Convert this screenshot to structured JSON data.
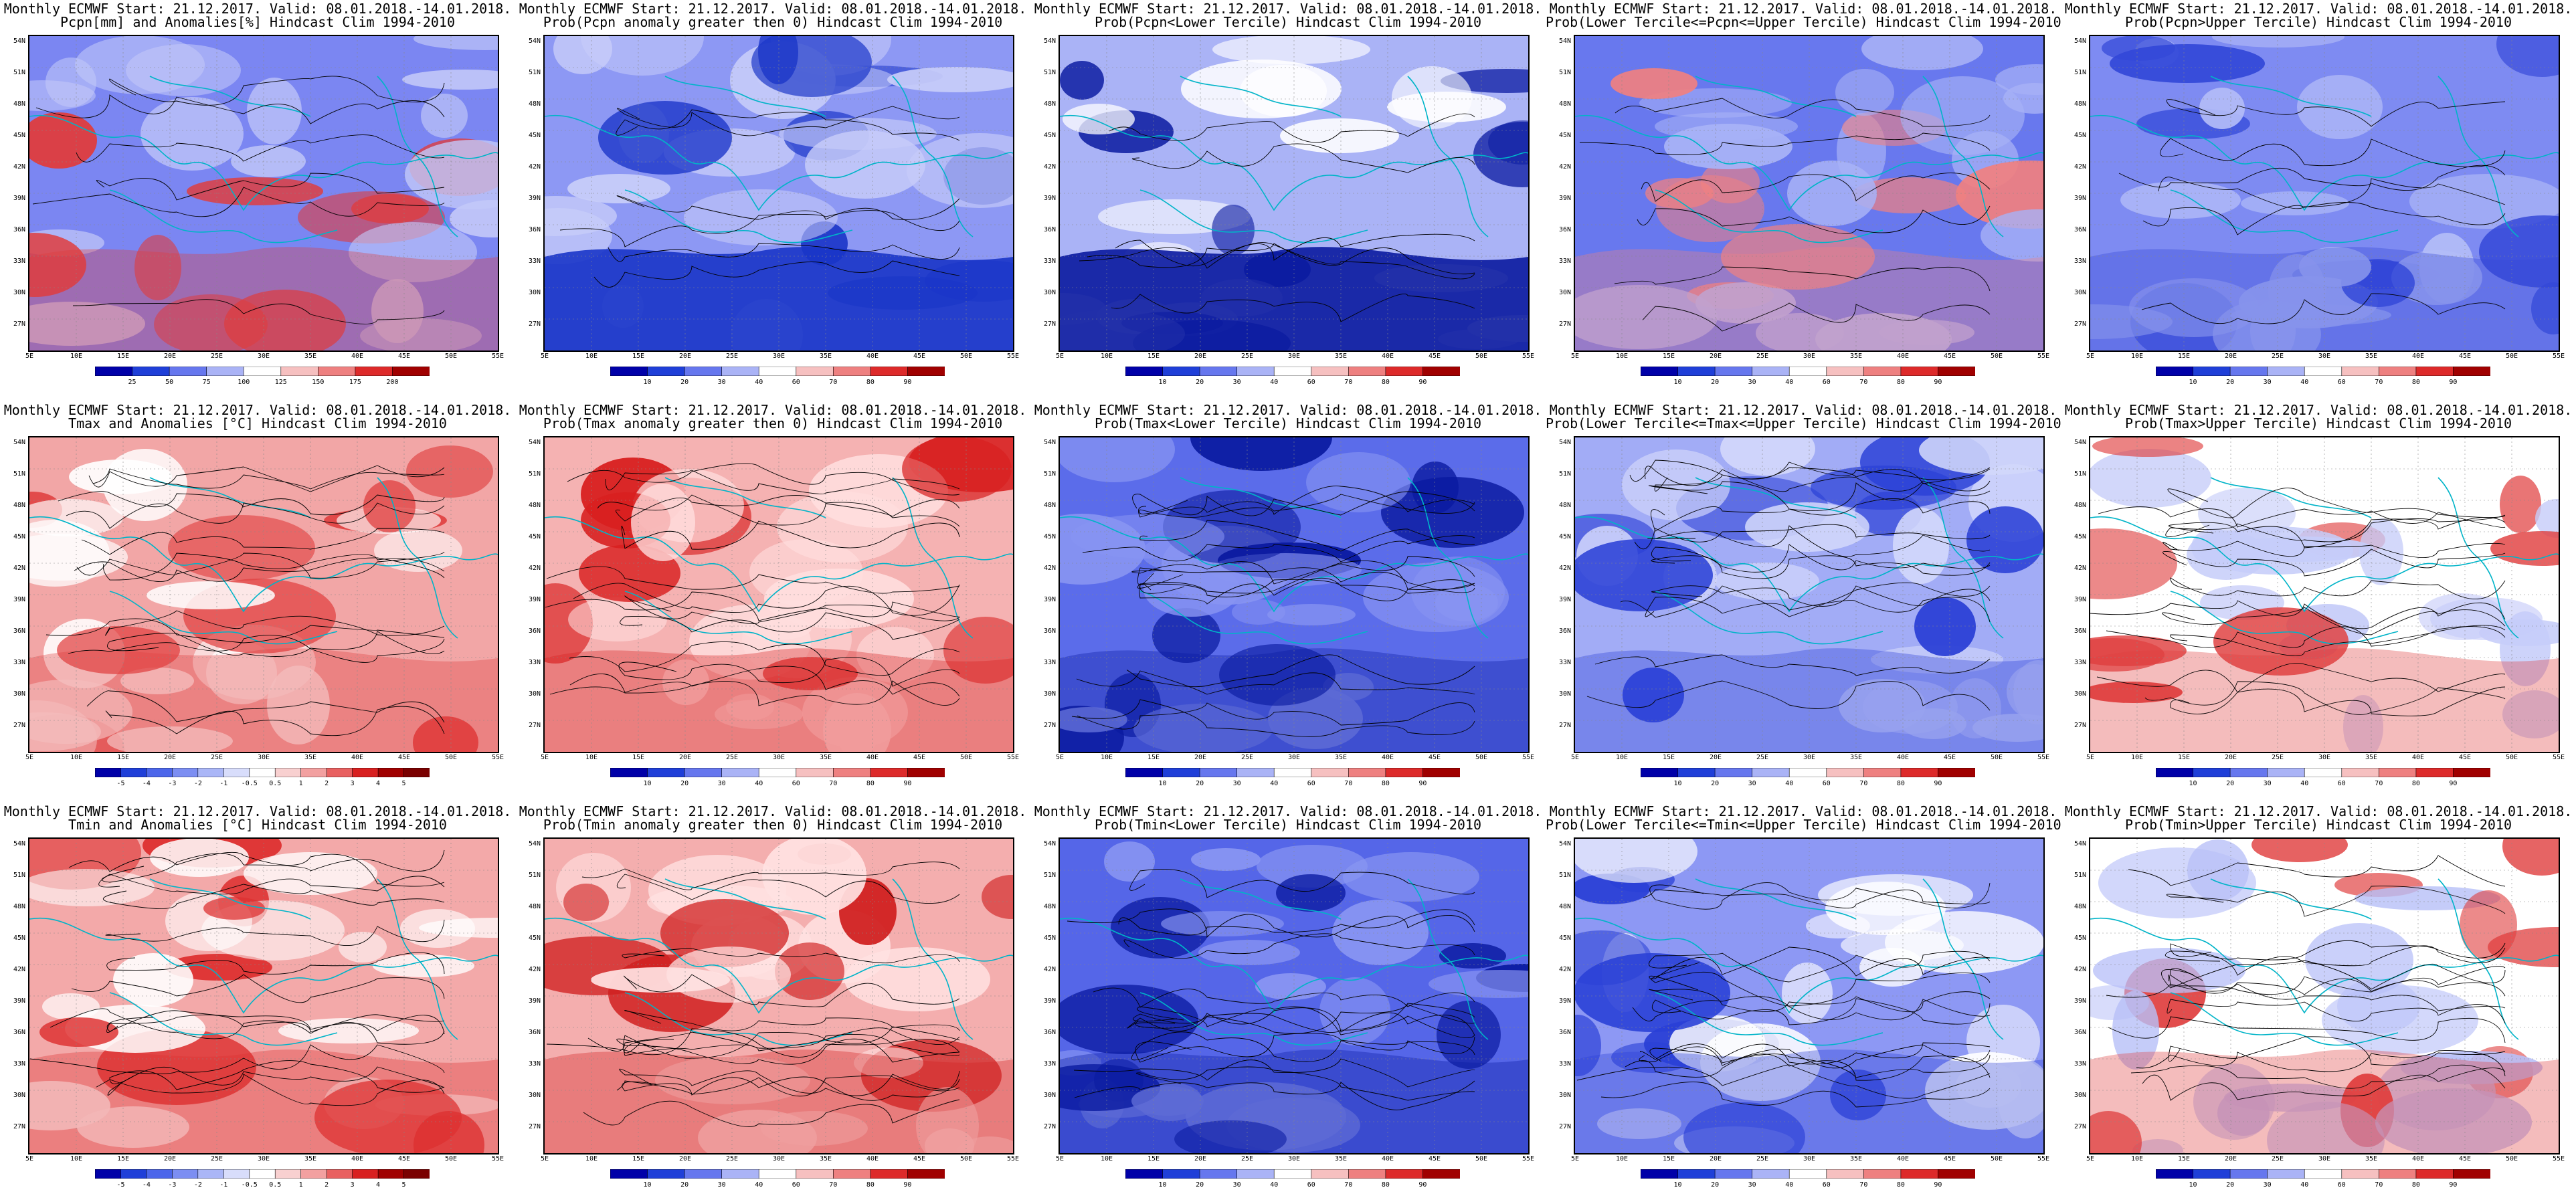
{
  "header_line": "Monthly ECMWF Start: 21.12.2017. Valid: 08.01.2018.-14.01.2018.",
  "colors": {
    "deep_blue": "#0000a8",
    "blue": "#2a4bdc",
    "mid_blue": "#6f80f0",
    "light_blue": "#b8c2f8",
    "white": "#ffffff",
    "light_red": "#f6c0c0",
    "mid_red": "#f08080",
    "red": "#e03030",
    "deep_red": "#a00000",
    "coast": "#00b4c8",
    "contour": "#000000"
  },
  "lat_labels": [
    "54N",
    "51N",
    "48N",
    "45N",
    "42N",
    "39N",
    "36N",
    "33N",
    "30N",
    "27N"
  ],
  "lon_labels": [
    "5E",
    "10E",
    "15E",
    "20E",
    "25E",
    "30E",
    "35E",
    "40E",
    "45E",
    "50E",
    "55E"
  ],
  "panels": [
    {
      "subtitle": "Pcpn[mm] and Anomalies[%] Hindcast Clim 1994-2010",
      "scale": [
        "25",
        "50",
        "75",
        "100",
        "125",
        "150",
        "175",
        "200"
      ],
      "base": "#7b86f2",
      "alt": "#c2c8f8",
      "accent": "#e03c3c"
    },
    {
      "subtitle": "Prob(Pcpn anomaly greater then 0) Hindcast Clim 1994-2010",
      "scale": [
        "10",
        "20",
        "30",
        "40",
        "60",
        "70",
        "80",
        "90"
      ],
      "base": "#8d98f4",
      "alt": "#c8cdf9",
      "accent": "#1a35c8"
    },
    {
      "subtitle": "Prob(Pcpn<Lower Tercile) Hindcast Clim 1994-2010",
      "scale": [
        "10",
        "20",
        "30",
        "40",
        "60",
        "70",
        "80",
        "90"
      ],
      "base": "#aab3f6",
      "alt": "#ffffff",
      "accent": "#0a1aa0"
    },
    {
      "subtitle": "Prob(Lower Tercile<=Pcpn<=Upper Tercile) Hindcast Clim 1994-2010",
      "scale": [
        "10",
        "20",
        "30",
        "40",
        "60",
        "70",
        "80",
        "90"
      ],
      "base": "#6878ee",
      "alt": "#a8b2f6",
      "accent": "#f08080"
    },
    {
      "subtitle": "Prob(Pcpn>Upper Tercile) Hindcast Clim 1994-2010",
      "scale": [
        "10",
        "20",
        "30",
        "40",
        "60",
        "70",
        "80",
        "90"
      ],
      "base": "#7e8bf2",
      "alt": "#b3bcf7",
      "accent": "#3348d8"
    },
    {
      "subtitle": "Tmax and Anomalies [°C] Hindcast Clim 1994-2010",
      "scale": [
        "-5",
        "-4",
        "-3",
        "-2",
        "-1",
        "-0.5",
        "0.5",
        "1",
        "2",
        "3",
        "4",
        "5"
      ],
      "base": "#f2a6a6",
      "alt": "#ffffff",
      "accent": "#e04040"
    },
    {
      "subtitle": "Prob(Tmax anomaly greater then 0) Hindcast Clim 1994-2010",
      "scale": [
        "10",
        "20",
        "30",
        "40",
        "60",
        "70",
        "80",
        "90"
      ],
      "base": "#f5b2b2",
      "alt": "#ffdede",
      "accent": "#d82020"
    },
    {
      "subtitle": "Prob(Tmax<Lower Tercile) Hindcast Clim 1994-2010",
      "scale": [
        "10",
        "20",
        "30",
        "40",
        "60",
        "70",
        "80",
        "90"
      ],
      "base": "#5b6cea",
      "alt": "#8894f2",
      "accent": "#0a1aa0"
    },
    {
      "subtitle": "Prob(Lower Tercile<=Tmax<=Upper Tercile) Hindcast Clim 1994-2010",
      "scale": [
        "10",
        "20",
        "30",
        "40",
        "60",
        "70",
        "80",
        "90"
      ],
      "base": "#a2acf6",
      "alt": "#d2d7fb",
      "accent": "#2a40d6"
    },
    {
      "subtitle": "Prob(Tmax>Upper Tercile) Hindcast Clim 1994-2010",
      "scale": [
        "10",
        "20",
        "30",
        "40",
        "60",
        "70",
        "80",
        "90"
      ],
      "base": "#ffffff",
      "alt": "#c6ccf9",
      "accent": "#e04040"
    },
    {
      "subtitle": "Tmin and Anomalies [°C] Hindcast Clim 1994-2010",
      "scale": [
        "-5",
        "-4",
        "-3",
        "-2",
        "-1",
        "-0.5",
        "0.5",
        "1",
        "2",
        "3",
        "4",
        "5"
      ],
      "base": "#f3a9a9",
      "alt": "#ffffff",
      "accent": "#dd3030"
    },
    {
      "subtitle": "Prob(Tmin anomaly greater then 0) Hindcast Clim 1994-2010",
      "scale": [
        "10",
        "20",
        "30",
        "40",
        "60",
        "70",
        "80",
        "90"
      ],
      "base": "#f4aeae",
      "alt": "#ffe2e2",
      "accent": "#d02020"
    },
    {
      "subtitle": "Prob(Tmin<Lower Tercile) Hindcast Clim 1994-2010",
      "scale": [
        "10",
        "20",
        "30",
        "40",
        "60",
        "70",
        "80",
        "90"
      ],
      "base": "#5566e8",
      "alt": "#8a96f2",
      "accent": "#0a1aa0"
    },
    {
      "subtitle": "Prob(Lower Tercile<=Tmin<=Upper Tercile) Hindcast Clim 1994-2010",
      "scale": [
        "10",
        "20",
        "30",
        "40",
        "60",
        "70",
        "80",
        "90"
      ],
      "base": "#8d98f4",
      "alt": "#ffffff",
      "accent": "#2a40d6"
    },
    {
      "subtitle": "Prob(Tmin>Upper Tercile) Hindcast Clim 1994-2010",
      "scale": [
        "10",
        "20",
        "30",
        "40",
        "60",
        "70",
        "80",
        "90"
      ],
      "base": "#ffffff",
      "alt": "#b8c0f8",
      "accent": "#e04040"
    }
  ]
}
